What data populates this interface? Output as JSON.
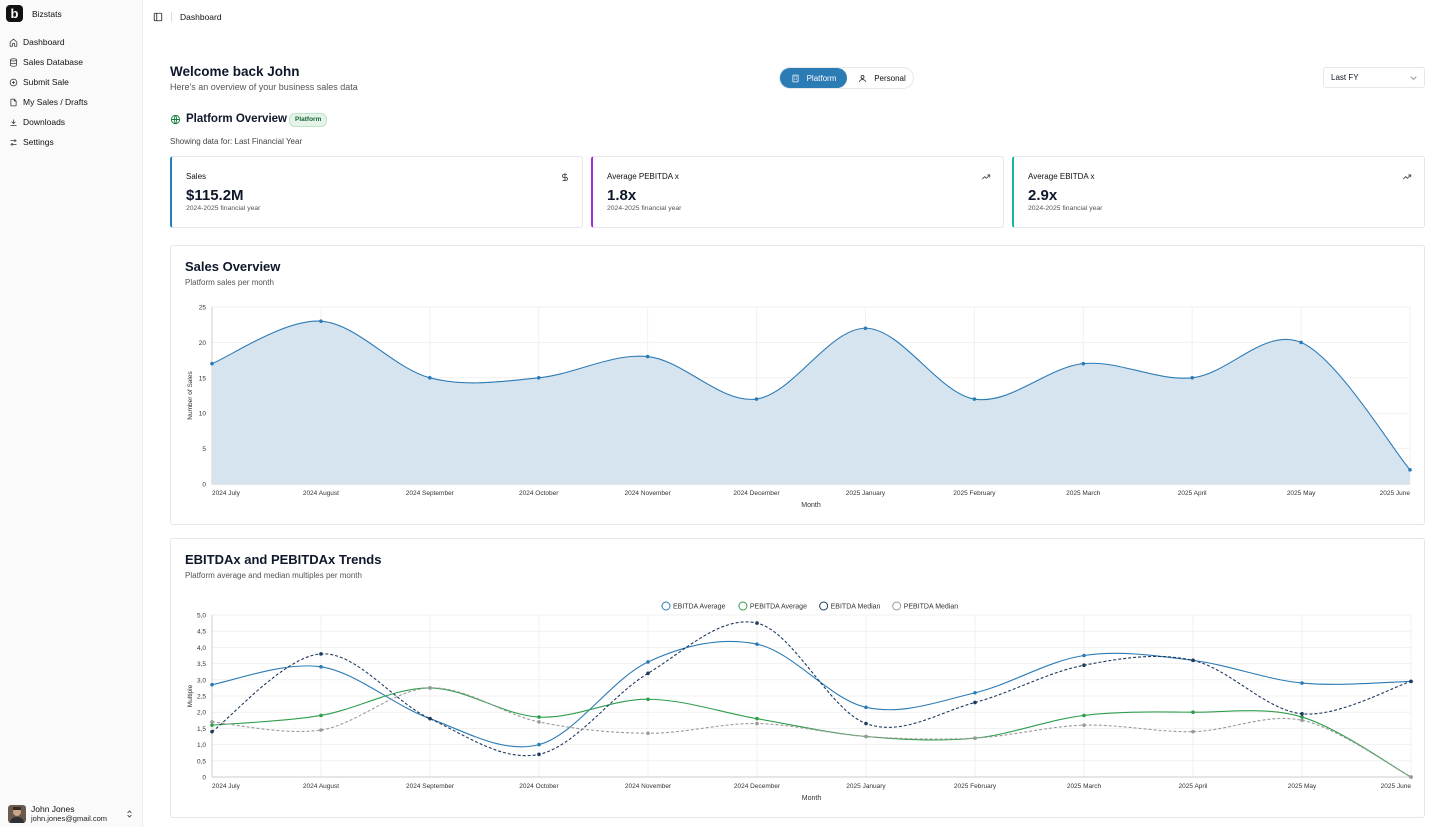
{
  "app": {
    "name": "Bizstats",
    "logo_letter": "b"
  },
  "sidebar": {
    "items": [
      {
        "label": "Dashboard",
        "icon": "home-icon"
      },
      {
        "label": "Sales Database",
        "icon": "database-icon"
      },
      {
        "label": "Submit Sale",
        "icon": "plus-circle-icon"
      },
      {
        "label": "My Sales / Drafts",
        "icon": "file-icon"
      },
      {
        "label": "Downloads",
        "icon": "download-icon"
      },
      {
        "label": "Settings",
        "icon": "sliders-icon"
      }
    ],
    "user": {
      "name": "John Jones",
      "email": "john.jones@gmail.com"
    }
  },
  "header": {
    "breadcrumb": "Dashboard"
  },
  "welcome": {
    "title": "Welcome back John",
    "subtitle": "Here's an overview of your business sales data"
  },
  "view_toggle": {
    "platform": "Platform",
    "personal": "Personal",
    "active": "Platform"
  },
  "period_select": {
    "value": "Last FY"
  },
  "overview": {
    "title": "Platform Overview",
    "badge": "Platform",
    "showing_prefix": "Showing data for:",
    "showing_value": "Last Financial Year"
  },
  "stats": [
    {
      "label": "Sales",
      "value": "$115.2M",
      "sub": "2024-2025 financial year",
      "accent": "#2b7bb5",
      "icon": "dollar-icon"
    },
    {
      "label": "Average PEBITDA x",
      "value": "1.8x",
      "sub": "2024-2025 financial year",
      "accent": "#9b30d9",
      "icon": "trending-up-icon"
    },
    {
      "label": "Average EBITDA x",
      "value": "2.9x",
      "sub": "2024-2025 financial year",
      "accent": "#14b8a6",
      "icon": "trending-up-icon"
    }
  ],
  "sales_panel": {
    "title": "Sales Overview",
    "subtitle": "Platform sales per month"
  },
  "trends_panel": {
    "title": "EBITDAx and PEBITDAx Trends",
    "subtitle": "Platform average and median multiples per month"
  },
  "chart_data": [
    {
      "type": "area",
      "categories": [
        "2024 July",
        "2024 August",
        "2024 September",
        "2024 October",
        "2024 November",
        "2024 December",
        "2025 January",
        "2025 February",
        "2025 March",
        "2025 April",
        "2025 May",
        "2025 June"
      ],
      "series": [
        {
          "values": [
            17,
            23,
            15,
            15,
            18,
            12,
            22,
            12,
            17,
            15,
            20,
            2
          ],
          "color": "#2b7bb5"
        }
      ],
      "xlabel": "Month",
      "ylabel": "Number of Sales",
      "ylim": [
        0,
        25
      ],
      "yticks": [
        "0",
        "5",
        "10",
        "15",
        "20",
        "25"
      ],
      "grid": true
    },
    {
      "type": "line",
      "categories": [
        "2024 July",
        "2024 August",
        "2024 September",
        "2024 October",
        "2024 November",
        "2024 December",
        "2025 January",
        "2025 February",
        "2025 March",
        "2025 April",
        "2025 May",
        "2025 June"
      ],
      "series": [
        {
          "name": "EBITDA Average",
          "values": [
            2.85,
            3.4,
            1.8,
            1.0,
            3.55,
            4.1,
            2.15,
            2.6,
            3.75,
            3.6,
            2.9,
            2.95
          ],
          "color": "#2b7bb5",
          "dashed": false
        },
        {
          "name": "PEBITDA Average",
          "values": [
            1.6,
            1.9,
            2.75,
            1.85,
            2.4,
            1.8,
            1.25,
            1.2,
            1.9,
            2.0,
            1.85,
            0.0
          ],
          "color": "#2e9e4b",
          "dashed": false
        },
        {
          "name": "EBITDA Median",
          "values": [
            1.4,
            3.8,
            1.8,
            0.7,
            3.2,
            4.75,
            1.65,
            2.3,
            3.45,
            3.6,
            1.95,
            2.95
          ],
          "color": "#1e3a5f",
          "dashed": true
        },
        {
          "name": "PEBITDA Median",
          "values": [
            1.7,
            1.45,
            2.75,
            1.7,
            1.35,
            1.65,
            1.25,
            1.2,
            1.6,
            1.4,
            1.75,
            0.0
          ],
          "color": "#9a9a9a",
          "dashed": true
        }
      ],
      "xlabel": "Month",
      "ylabel": "Multiple",
      "ylim": [
        0,
        5
      ],
      "yticks": [
        "0",
        "0,5",
        "1,0",
        "1,5",
        "2,0",
        "2,5",
        "3,0",
        "3,5",
        "4,0",
        "4,5",
        "5,0"
      ],
      "legend": "top-center",
      "grid": true
    }
  ]
}
